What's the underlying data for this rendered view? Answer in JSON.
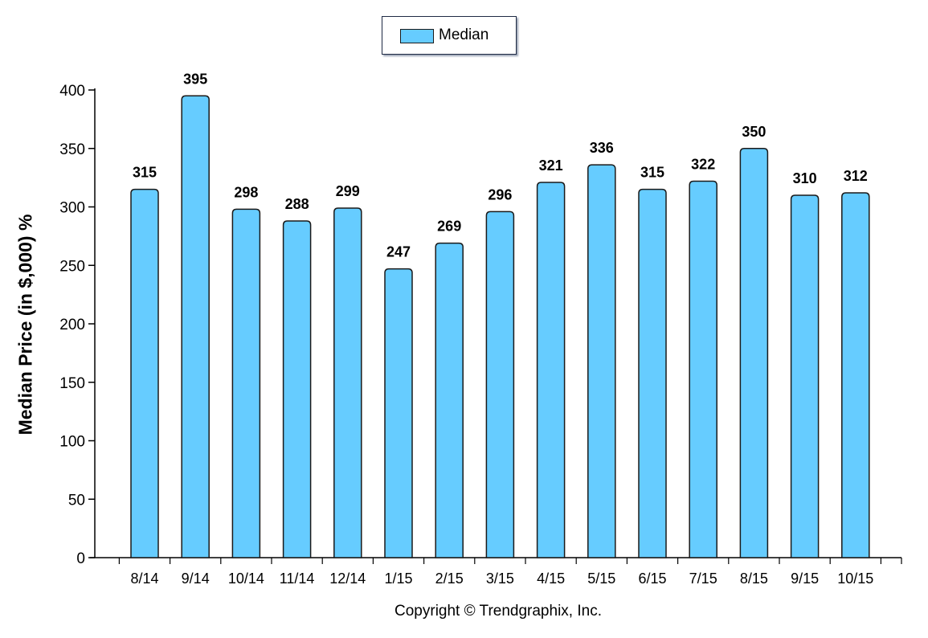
{
  "chart_data": {
    "type": "bar",
    "categories": [
      "8/14",
      "9/14",
      "10/14",
      "11/14",
      "12/14",
      "1/15",
      "2/15",
      "3/15",
      "4/15",
      "5/15",
      "6/15",
      "7/15",
      "8/15",
      "9/15",
      "10/15"
    ],
    "series": [
      {
        "name": "Median",
        "values": [
          315,
          395,
          298,
          288,
          299,
          247,
          269,
          296,
          321,
          336,
          315,
          322,
          350,
          310,
          312
        ]
      }
    ],
    "ylabel": "Median Price (in $,000) %",
    "xlabel": "",
    "ylim": [
      0,
      400
    ],
    "yticks": [
      0,
      50,
      100,
      150,
      200,
      250,
      300,
      350,
      400
    ],
    "legend_position": "top-center",
    "grid": false,
    "bar_color": "#66ccff",
    "data_labels": true
  },
  "footer": {
    "copyright": "Copyright © Trendgraphix, Inc."
  }
}
